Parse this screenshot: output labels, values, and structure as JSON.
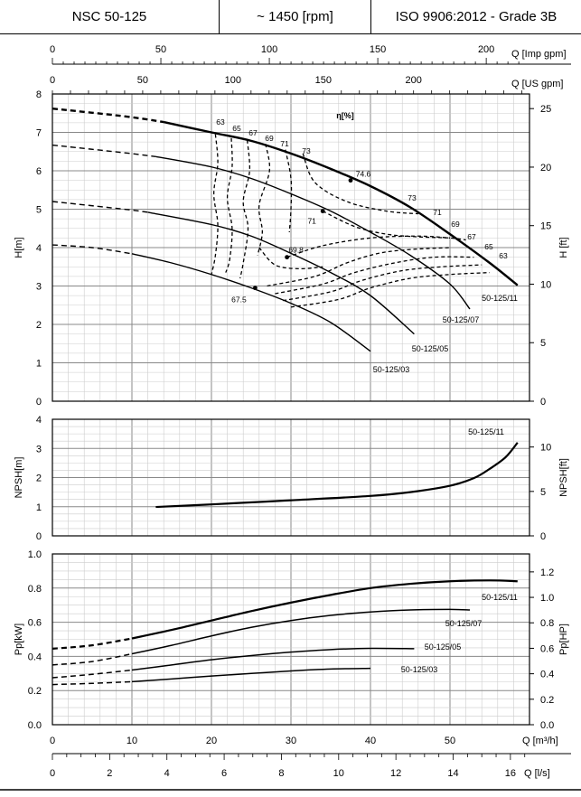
{
  "header": {
    "model": "NSC 50-125",
    "speed": "~ 1450 [rpm]",
    "standard": "ISO 9906:2012 - Grade 3B"
  },
  "chart_data": [
    {
      "type": "line",
      "name": "head",
      "xlabel": "Q [m³/h]",
      "ylabel": "H[m]",
      "ylabel_right": "H [ft]",
      "top_axes": [
        {
          "label": "Q [Imp gpm]",
          "ticks": [
            0,
            50,
            100,
            150,
            200
          ]
        },
        {
          "label": "Q [US gpm]",
          "ticks": [
            0,
            50,
            100,
            150,
            200
          ]
        }
      ],
      "xlim": [
        0,
        60
      ],
      "ylim": [
        0,
        8
      ],
      "ylim_right": [
        0,
        26.25
      ],
      "yticks": [
        0,
        1,
        2,
        3,
        4,
        5,
        6,
        7,
        8
      ],
      "yticks_right": [
        0,
        5,
        10,
        15,
        20,
        25
      ],
      "grid": true,
      "series": [
        {
          "name": "50-125/11",
          "x": [
            0,
            9,
            14,
            20,
            25,
            30,
            35,
            40,
            45,
            50,
            55,
            58.5
          ],
          "y": [
            7.62,
            7.42,
            7.27,
            7.0,
            6.78,
            6.45,
            6.05,
            5.6,
            5.05,
            4.35,
            3.6,
            3.02
          ]
        },
        {
          "name": "50-125/07",
          "x": [
            0,
            9,
            13,
            20,
            25,
            30,
            35,
            40,
            45,
            50,
            52.5
          ],
          "y": [
            6.67,
            6.47,
            6.37,
            6.1,
            5.8,
            5.4,
            4.95,
            4.4,
            3.8,
            3.05,
            2.4
          ]
        },
        {
          "name": "50-125/05",
          "x": [
            0,
            9,
            12,
            20,
            25,
            30,
            35,
            40,
            45.5
          ],
          "y": [
            5.2,
            5.0,
            4.92,
            4.6,
            4.3,
            3.85,
            3.35,
            2.75,
            1.75
          ]
        },
        {
          "name": "50-125/03",
          "x": [
            0,
            5,
            10,
            15,
            20,
            25,
            30,
            35,
            40
          ],
          "y": [
            4.07,
            4.0,
            3.84,
            3.6,
            3.3,
            2.95,
            2.55,
            2.05,
            1.3
          ]
        }
      ],
      "efficiency_points": [
        {
          "label": "74.6",
          "x": 37.5,
          "y": 5.75
        },
        {
          "label": "71",
          "x": 34,
          "y": 4.95
        },
        {
          "label": "69.8",
          "x": 29.5,
          "y": 3.75
        },
        {
          "label": "67.5",
          "x": 25.5,
          "y": 2.95
        }
      ],
      "efficiency_labels": [
        "η[%]",
        "63",
        "65",
        "67",
        "69",
        "71",
        "73",
        "73",
        "71",
        "69",
        "67",
        "65",
        "63"
      ]
    },
    {
      "type": "line",
      "name": "npsh",
      "xlabel": "Q [m³/h]",
      "ylabel": "NPSH[m]",
      "ylabel_right": "NPSH[ft]",
      "xlim": [
        0,
        60
      ],
      "ylim": [
        0,
        4
      ],
      "ylim_right": [
        0,
        13.12
      ],
      "yticks": [
        0,
        1,
        2,
        3,
        4
      ],
      "yticks_right": [
        0,
        5,
        10
      ],
      "grid": true,
      "series": [
        {
          "name": "50-125/11",
          "x": [
            13,
            20,
            30,
            40,
            45,
            50,
            53,
            55,
            57,
            58.5
          ],
          "y": [
            0.99,
            1.08,
            1.22,
            1.37,
            1.5,
            1.72,
            1.98,
            2.3,
            2.7,
            3.2
          ]
        }
      ]
    },
    {
      "type": "line",
      "name": "power",
      "xlabel": "Q [m³/h]",
      "ylabel": "Pp[kW]",
      "ylabel_right": "Pp[HP]",
      "bottom_axes": [
        {
          "label": "Q [m³/h]",
          "ticks": [
            0,
            10,
            20,
            30,
            40,
            50
          ]
        },
        {
          "label": "Q [l/s]",
          "ticks": [
            0,
            2,
            4,
            6,
            8,
            10,
            12,
            14,
            16
          ]
        }
      ],
      "xlim": [
        0,
        60
      ],
      "ylim": [
        0,
        1.0
      ],
      "ylim_right": [
        0,
        1.341
      ],
      "yticks": [
        0.0,
        0.2,
        0.4,
        0.6,
        0.8,
        1.0
      ],
      "yticks_right": [
        0.0,
        0.2,
        0.4,
        0.6,
        0.8,
        1.0,
        1.2
      ],
      "grid": true,
      "series": [
        {
          "name": "50-125/11",
          "x": [
            0,
            5,
            10,
            15,
            20,
            25,
            30,
            35,
            40,
            45,
            50,
            55,
            58.5
          ],
          "y": [
            0.445,
            0.465,
            0.505,
            0.555,
            0.61,
            0.665,
            0.715,
            0.76,
            0.8,
            0.825,
            0.84,
            0.845,
            0.84
          ]
        },
        {
          "name": "50-125/07",
          "x": [
            0,
            5,
            10,
            15,
            20,
            25,
            30,
            35,
            40,
            45,
            50,
            52.5
          ],
          "y": [
            0.35,
            0.37,
            0.415,
            0.465,
            0.52,
            0.57,
            0.61,
            0.64,
            0.66,
            0.672,
            0.675,
            0.672
          ]
        },
        {
          "name": "50-125/05",
          "x": [
            0,
            5,
            10,
            15,
            20,
            25,
            30,
            35,
            40,
            45.5
          ],
          "y": [
            0.275,
            0.295,
            0.32,
            0.35,
            0.38,
            0.405,
            0.425,
            0.44,
            0.447,
            0.445
          ]
        },
        {
          "name": "50-125/03",
          "x": [
            0,
            5,
            10,
            15,
            20,
            25,
            30,
            35,
            40
          ],
          "y": [
            0.235,
            0.242,
            0.252,
            0.268,
            0.285,
            0.3,
            0.315,
            0.326,
            0.33
          ]
        }
      ]
    }
  ],
  "colors": {
    "line": "#000000",
    "grid_major": "#888888",
    "grid_minor": "#cccccc"
  }
}
